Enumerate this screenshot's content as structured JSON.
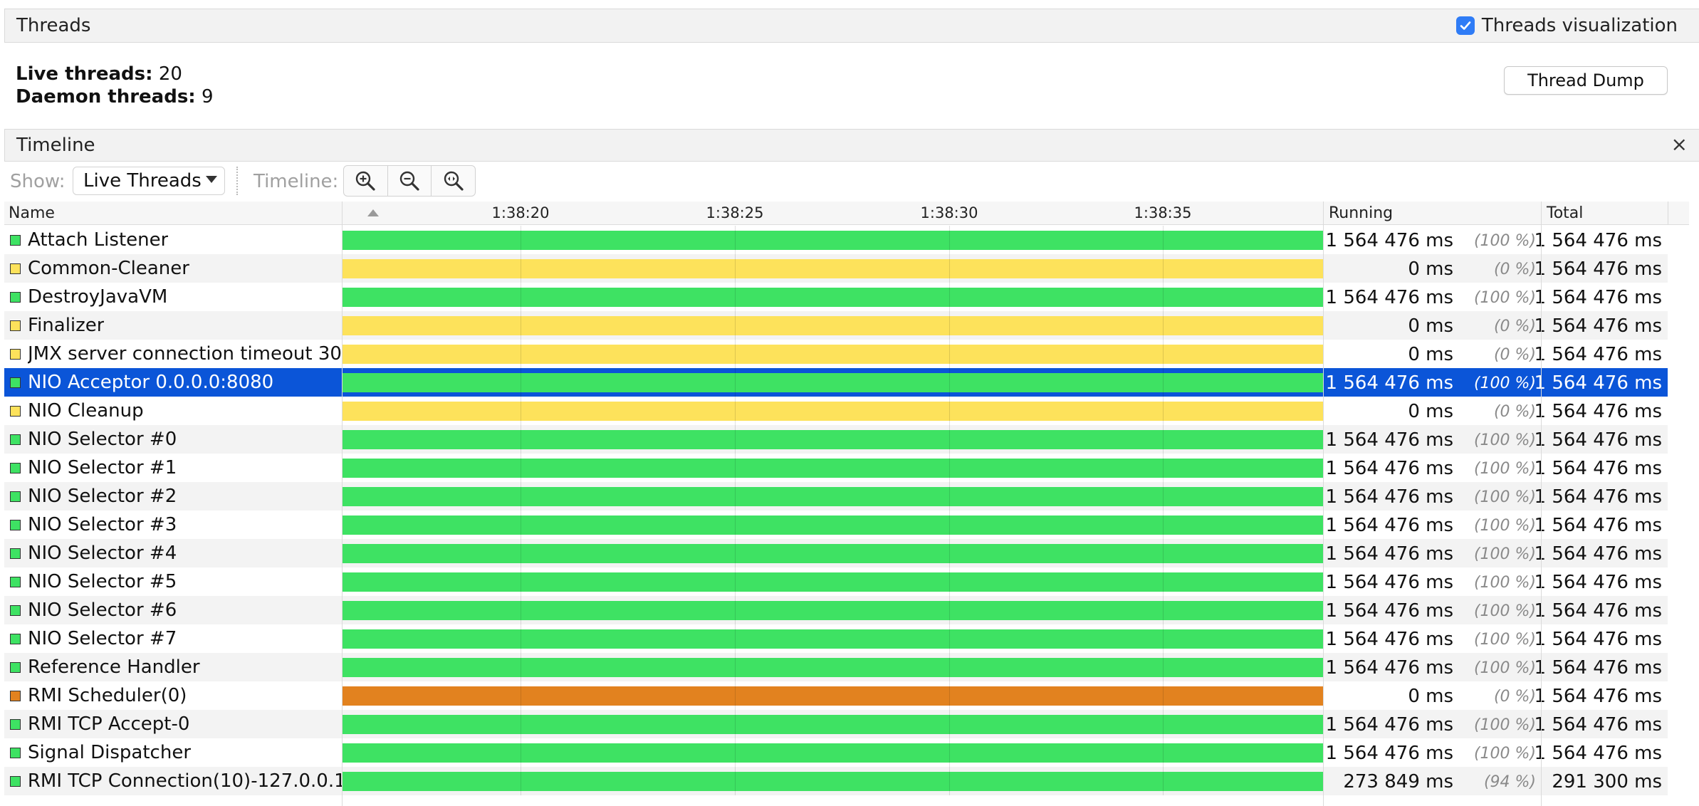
{
  "threads_panel": {
    "title": "Threads",
    "visualization_label": "Threads visualization",
    "visualization_checked": true,
    "live_label": "Live threads:",
    "live_value": "20",
    "daemon_label": "Daemon threads:",
    "daemon_value": "9",
    "dump_button": "Thread Dump"
  },
  "timeline_panel": {
    "title": "Timeline",
    "close_symbol": "×",
    "show_label": "Show:",
    "show_value": "Live Threads",
    "timeline_label": "Timeline:",
    "zoom_icons": [
      "zoom-in-icon",
      "zoom-out-icon",
      "zoom-fit-icon"
    ]
  },
  "table": {
    "headers": {
      "name": "Name",
      "running": "Running",
      "total": "Total"
    },
    "ticks": [
      "1:38:20",
      "1:38:25",
      "1:38:30",
      "1:38:35"
    ],
    "rows": [
      {
        "name": "Attach Listener",
        "state": "running",
        "running": "1 564 476 ms",
        "pct": "(100 %)",
        "total": "1 564 476 ms"
      },
      {
        "name": "Common-Cleaner",
        "state": "waiting",
        "running": "0 ms",
        "pct": "(0 %)",
        "total": "1 564 476 ms"
      },
      {
        "name": "DestroyJavaVM",
        "state": "running",
        "running": "1 564 476 ms",
        "pct": "(100 %)",
        "total": "1 564 476 ms"
      },
      {
        "name": "Finalizer",
        "state": "waiting",
        "running": "0 ms",
        "pct": "(0 %)",
        "total": "1 564 476 ms"
      },
      {
        "name": "JMX server connection timeout 30",
        "state": "waiting",
        "running": "0 ms",
        "pct": "(0 %)",
        "total": "1 564 476 ms"
      },
      {
        "name": "NIO Acceptor 0.0.0.0:8080",
        "state": "running",
        "running": "1 564 476 ms",
        "pct": "(100 %)",
        "total": "1 564 476 ms",
        "selected": true
      },
      {
        "name": "NIO Cleanup",
        "state": "waiting",
        "running": "0 ms",
        "pct": "(0 %)",
        "total": "1 564 476 ms"
      },
      {
        "name": "NIO Selector #0",
        "state": "running",
        "running": "1 564 476 ms",
        "pct": "(100 %)",
        "total": "1 564 476 ms"
      },
      {
        "name": "NIO Selector #1",
        "state": "running",
        "running": "1 564 476 ms",
        "pct": "(100 %)",
        "total": "1 564 476 ms"
      },
      {
        "name": "NIO Selector #2",
        "state": "running",
        "running": "1 564 476 ms",
        "pct": "(100 %)",
        "total": "1 564 476 ms"
      },
      {
        "name": "NIO Selector #3",
        "state": "running",
        "running": "1 564 476 ms",
        "pct": "(100 %)",
        "total": "1 564 476 ms"
      },
      {
        "name": "NIO Selector #4",
        "state": "running",
        "running": "1 564 476 ms",
        "pct": "(100 %)",
        "total": "1 564 476 ms"
      },
      {
        "name": "NIO Selector #5",
        "state": "running",
        "running": "1 564 476 ms",
        "pct": "(100 %)",
        "total": "1 564 476 ms"
      },
      {
        "name": "NIO Selector #6",
        "state": "running",
        "running": "1 564 476 ms",
        "pct": "(100 %)",
        "total": "1 564 476 ms"
      },
      {
        "name": "NIO Selector #7",
        "state": "running",
        "running": "1 564 476 ms",
        "pct": "(100 %)",
        "total": "1 564 476 ms"
      },
      {
        "name": "Reference Handler",
        "state": "running",
        "running": "1 564 476 ms",
        "pct": "(100 %)",
        "total": "1 564 476 ms"
      },
      {
        "name": "RMI Scheduler(0)",
        "state": "parked",
        "running": "0 ms",
        "pct": "(0 %)",
        "total": "1 564 476 ms"
      },
      {
        "name": "RMI TCP Accept-0",
        "state": "running",
        "running": "1 564 476 ms",
        "pct": "(100 %)",
        "total": "1 564 476 ms"
      },
      {
        "name": "Signal Dispatcher",
        "state": "running",
        "running": "1 564 476 ms",
        "pct": "(100 %)",
        "total": "1 564 476 ms"
      },
      {
        "name": "RMI TCP Connection(10)-127.0.0.1",
        "state": "running",
        "running": "273 849 ms",
        "pct": "(94 %)",
        "total": "291 300 ms"
      }
    ]
  },
  "colors": {
    "running": "#3ee263",
    "waiting": "#fde25b",
    "parked": "#e2821f",
    "selection": "#0b55d8",
    "checkbox": "#2f7cf6"
  }
}
